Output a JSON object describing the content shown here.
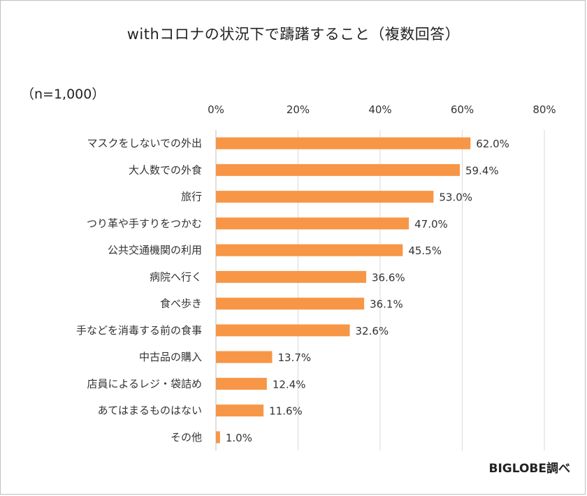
{
  "chart_data": {
    "type": "bar",
    "orientation": "horizontal",
    "title": "withコロナの状況下で躊躇すること（複数回答）",
    "sample_size": "（n=1,000）",
    "source": "BIGLOBE調べ",
    "xlim": [
      0,
      80
    ],
    "x_ticks": [
      {
        "value": 0,
        "label": "0%"
      },
      {
        "value": 20,
        "label": "20%"
      },
      {
        "value": 40,
        "label": "40%"
      },
      {
        "value": 60,
        "label": "60%"
      },
      {
        "value": 80,
        "label": "80%"
      }
    ],
    "categories": [
      "マスクをしないでの外出",
      "大人数での外食",
      "旅行",
      "つり革や手すりをつかむ",
      "公共交通機関の利用",
      "病院へ行く",
      "食べ歩き",
      "手などを消毒する前の食事",
      "中古品の購入",
      "店員によるレジ・袋詰め",
      "あてはまるものはない",
      "その他"
    ],
    "values": [
      62.0,
      59.4,
      53.0,
      47.0,
      45.5,
      36.6,
      36.1,
      32.6,
      13.7,
      12.4,
      11.6,
      1.0
    ],
    "value_labels": [
      "62.0%",
      "59.4%",
      "53.0%",
      "47.0%",
      "45.5%",
      "36.6%",
      "36.1%",
      "32.6%",
      "13.7%",
      "12.4%",
      "11.6%",
      "1.0%"
    ],
    "bar_color": "#f79646",
    "grid": true
  }
}
